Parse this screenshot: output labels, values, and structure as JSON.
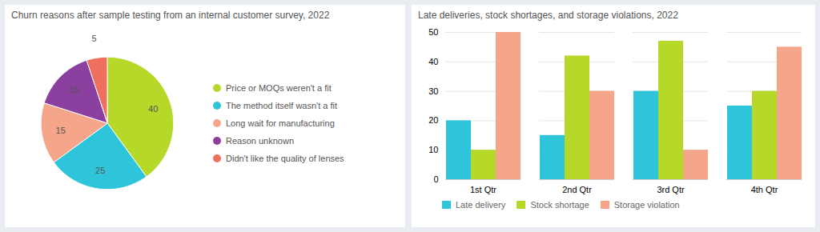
{
  "chart_data": [
    {
      "type": "pie",
      "title": "Churn reasons after sample testing from an internal customer survey, 2022",
      "categories": [
        "Price or MOQs weren't a fit",
        "The method itself wasn't a fit",
        "Long wait for manufacturing",
        "Reason unknown",
        "Didn't like the quality of lenses"
      ],
      "values": [
        40,
        25,
        15,
        15,
        5
      ],
      "colors": [
        "#b5d829",
        "#2ec4d9",
        "#f4a58a",
        "#8b3f9e",
        "#f07060"
      ],
      "data_labels": true,
      "legend": "right"
    },
    {
      "type": "bar",
      "title": "Late deliveries, stock shortages, and storage violations, 2022",
      "categories": [
        "1st Qtr",
        "2nd Qtr",
        "3rd Qtr",
        "4th Qtr"
      ],
      "series": [
        {
          "name": "Late delivery",
          "color": "#2ec4d9",
          "values": [
            20,
            15,
            30,
            25
          ]
        },
        {
          "name": "Stock shortage",
          "color": "#b5d829",
          "values": [
            10,
            42,
            47,
            30
          ]
        },
        {
          "name": "Storage violation",
          "color": "#f4a58a",
          "values": [
            50,
            30,
            10,
            45
          ]
        }
      ],
      "ylim": [
        0,
        50
      ],
      "yticks": [
        0,
        10,
        20,
        30,
        40,
        50
      ],
      "grid": true,
      "legend": "bottom"
    }
  ]
}
